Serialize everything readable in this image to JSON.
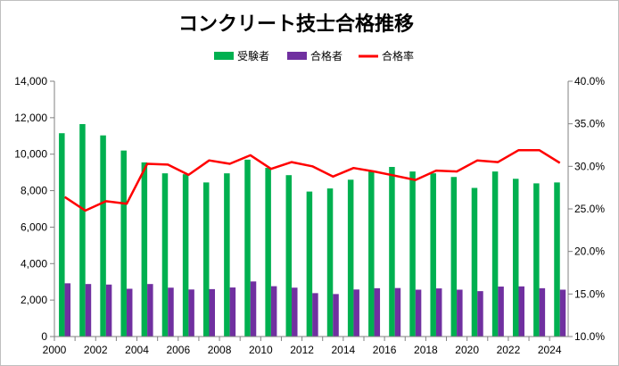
{
  "colors": {
    "applicants": "#00b050",
    "passers": "#7030a0",
    "rate": "#ff0000"
  },
  "chart_data": {
    "type": "bar",
    "title": "コンクリート技士合格推移",
    "x": [
      2000,
      2001,
      2002,
      2003,
      2004,
      2005,
      2006,
      2007,
      2008,
      2009,
      2010,
      2011,
      2012,
      2013,
      2014,
      2015,
      2016,
      2017,
      2018,
      2019,
      2020,
      2021,
      2022,
      2023,
      2024
    ],
    "x_tick_labels": [
      "2000",
      "2002",
      "2004",
      "2006",
      "2008",
      "2010",
      "2012",
      "2014",
      "2016",
      "2018",
      "2020",
      "2022",
      "2024"
    ],
    "y_tick_labels": [
      "0",
      "2,000",
      "4,000",
      "6,000",
      "8,000",
      "10,000",
      "12,000",
      "14,000"
    ],
    "y2_tick_labels": [
      "10.0%",
      "15.0%",
      "20.0%",
      "25.0%",
      "30.0%",
      "35.0%",
      "40.0%"
    ],
    "ylim": [
      0,
      14000
    ],
    "y2lim": [
      0.1,
      0.4
    ],
    "legend_position": "top-center",
    "grid": false,
    "series": [
      {
        "name": "受験者",
        "type": "bar",
        "axis": "left",
        "values": [
          11150,
          11650,
          11030,
          10200,
          9550,
          8950,
          8900,
          8450,
          8950,
          9700,
          9250,
          8850,
          7950,
          8120,
          8600,
          9050,
          9300,
          9050,
          8950,
          8750,
          8150,
          9050,
          8650,
          8400,
          8450
        ]
      },
      {
        "name": "合格者",
        "type": "bar",
        "axis": "left",
        "values": [
          2920,
          2880,
          2850,
          2620,
          2880,
          2680,
          2580,
          2600,
          2690,
          3020,
          2760,
          2680,
          2380,
          2330,
          2580,
          2650,
          2660,
          2570,
          2640,
          2570,
          2490,
          2740,
          2750,
          2650,
          2570
        ]
      },
      {
        "name": "合格率",
        "type": "line",
        "axis": "right",
        "values": [
          0.264,
          0.248,
          0.259,
          0.256,
          0.303,
          0.302,
          0.29,
          0.307,
          0.303,
          0.313,
          0.297,
          0.305,
          0.3,
          0.288,
          0.298,
          0.294,
          0.289,
          0.284,
          0.295,
          0.294,
          0.307,
          0.305,
          0.319,
          0.319,
          0.304
        ]
      }
    ]
  }
}
